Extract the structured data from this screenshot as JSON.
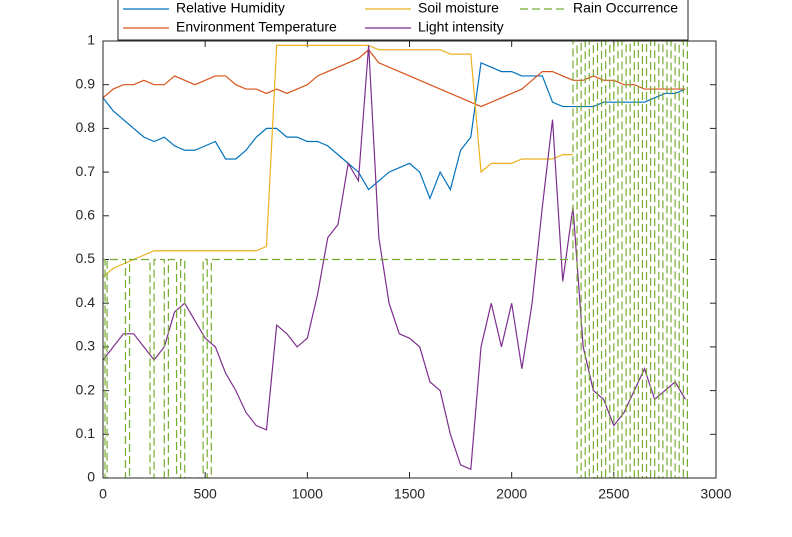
{
  "chart_data": {
    "type": "line",
    "x": [
      0,
      50,
      100,
      150,
      200,
      250,
      300,
      350,
      400,
      450,
      500,
      550,
      600,
      650,
      700,
      750,
      800,
      850,
      900,
      950,
      1000,
      1050,
      1100,
      1150,
      1200,
      1250,
      1300,
      1350,
      1400,
      1450,
      1500,
      1550,
      1600,
      1650,
      1700,
      1750,
      1800,
      1850,
      1900,
      1950,
      2000,
      2050,
      2100,
      2150,
      2200,
      2250,
      2300,
      2350,
      2400,
      2450,
      2500,
      2550,
      2600,
      2650,
      2700,
      2750,
      2800,
      2850
    ],
    "series": [
      {
        "name": "Relative Humidity",
        "color": "#0072BD",
        "values": [
          0.87,
          0.84,
          0.82,
          0.8,
          0.78,
          0.77,
          0.78,
          0.76,
          0.75,
          0.75,
          0.76,
          0.77,
          0.73,
          0.73,
          0.75,
          0.78,
          0.8,
          0.8,
          0.78,
          0.78,
          0.77,
          0.77,
          0.76,
          0.74,
          0.72,
          0.7,
          0.66,
          0.68,
          0.7,
          0.71,
          0.72,
          0.7,
          0.64,
          0.7,
          0.66,
          0.75,
          0.78,
          0.95,
          0.94,
          0.93,
          0.93,
          0.92,
          0.92,
          0.92,
          0.86,
          0.85,
          0.85,
          0.85,
          0.85,
          0.86,
          0.86,
          0.86,
          0.86,
          0.86,
          0.87,
          0.88,
          0.88,
          0.89
        ]
      },
      {
        "name": "Environment Temperature",
        "color": "#D95319",
        "values": [
          0.87,
          0.89,
          0.9,
          0.9,
          0.91,
          0.9,
          0.9,
          0.92,
          0.91,
          0.9,
          0.91,
          0.92,
          0.92,
          0.9,
          0.89,
          0.89,
          0.88,
          0.89,
          0.88,
          0.89,
          0.9,
          0.92,
          0.93,
          0.94,
          0.95,
          0.96,
          0.98,
          0.95,
          0.94,
          0.93,
          0.92,
          0.91,
          0.9,
          0.89,
          0.88,
          0.87,
          0.86,
          0.85,
          0.86,
          0.87,
          0.88,
          0.89,
          0.91,
          0.93,
          0.93,
          0.92,
          0.91,
          0.91,
          0.92,
          0.91,
          0.91,
          0.9,
          0.9,
          0.89,
          0.89,
          0.89,
          0.89,
          0.89
        ]
      },
      {
        "name": "Soil moisture",
        "color": "#EDB120",
        "values": [
          0.46,
          0.48,
          0.49,
          0.5,
          0.51,
          0.52,
          0.52,
          0.52,
          0.52,
          0.52,
          0.52,
          0.52,
          0.52,
          0.52,
          0.52,
          0.52,
          0.53,
          0.99,
          0.99,
          0.99,
          0.99,
          0.99,
          0.99,
          0.99,
          0.99,
          0.99,
          0.99,
          0.98,
          0.98,
          0.98,
          0.98,
          0.98,
          0.98,
          0.98,
          0.97,
          0.97,
          0.97,
          0.7,
          0.72,
          0.72,
          0.72,
          0.73,
          0.73,
          0.73,
          0.73,
          0.74,
          0.74,
          null,
          null,
          null,
          null,
          null,
          null,
          null,
          null,
          null,
          null,
          null
        ]
      },
      {
        "name": "Light intensity",
        "color": "#7E2F8E",
        "values": [
          0.27,
          0.3,
          0.33,
          0.33,
          0.3,
          0.27,
          0.3,
          0.38,
          0.4,
          0.36,
          0.32,
          0.3,
          0.24,
          0.2,
          0.15,
          0.12,
          0.11,
          0.35,
          0.33,
          0.3,
          0.32,
          0.42,
          0.55,
          0.58,
          0.72,
          0.68,
          0.99,
          0.55,
          0.4,
          0.33,
          0.32,
          0.3,
          0.22,
          0.2,
          0.1,
          0.03,
          0.02,
          0.3,
          0.4,
          0.3,
          0.4,
          0.25,
          0.4,
          0.62,
          0.82,
          0.45,
          0.62,
          0.3,
          0.2,
          0.18,
          0.12,
          0.15,
          0.2,
          0.25,
          0.18,
          0.2,
          0.22,
          0.18
        ]
      },
      {
        "name": "Rain Occurrence",
        "color": "#77AC30",
        "dashed": true,
        "x": [
          0,
          10,
          10,
          20,
          20,
          110,
          110,
          130,
          130,
          230,
          230,
          250,
          250,
          300,
          300,
          320,
          320,
          360,
          360,
          380,
          380,
          400,
          400,
          490,
          490,
          510,
          510,
          530,
          530,
          2300,
          2300,
          2320,
          2320,
          2340,
          2340,
          2360,
          2360,
          2380,
          2380,
          2400,
          2400,
          2420,
          2420,
          2440,
          2440,
          2460,
          2460,
          2480,
          2480,
          2500,
          2500,
          2520,
          2520,
          2540,
          2540,
          2560,
          2560,
          2580,
          2580,
          2600,
          2600,
          2620,
          2620,
          2640,
          2640,
          2660,
          2660,
          2680,
          2680,
          2700,
          2700,
          2720,
          2720,
          2740,
          2740,
          2760,
          2760,
          2780,
          2780,
          2800,
          2800,
          2820,
          2820,
          2840,
          2840,
          2860,
          2860
        ],
        "values": [
          0.5,
          0.5,
          0,
          0,
          0.5,
          0.5,
          0,
          0,
          0.5,
          0.5,
          0,
          0,
          0.5,
          0.5,
          0,
          0,
          0.5,
          0.5,
          0,
          0,
          0.5,
          0.5,
          0,
          0,
          0.5,
          0.5,
          0,
          0,
          0.5,
          0.5,
          1,
          1,
          0,
          0,
          1,
          1,
          0,
          0,
          1,
          1,
          0,
          0,
          1,
          1,
          0,
          0,
          1,
          1,
          0,
          0,
          1,
          1,
          0,
          0,
          1,
          1,
          0,
          0,
          1,
          1,
          0,
          0,
          1,
          1,
          0,
          0,
          1,
          1,
          0,
          0,
          1,
          1,
          0,
          0,
          1,
          1,
          0,
          0,
          1,
          1,
          0,
          0,
          1,
          1,
          0,
          0,
          1
        ]
      }
    ],
    "xlim": [
      0,
      3000
    ],
    "xticks": [
      0,
      500,
      1000,
      1500,
      2000,
      2500,
      3000
    ],
    "ylim": [
      0,
      1
    ],
    "yticks": [
      0,
      0.1,
      0.2,
      0.3,
      0.4,
      0.5,
      0.6,
      0.7,
      0.8,
      0.9,
      1
    ],
    "grid": false
  }
}
